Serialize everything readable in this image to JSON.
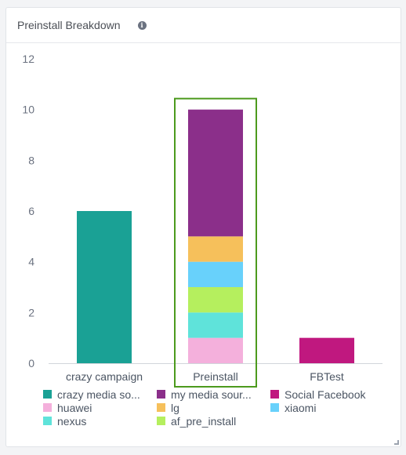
{
  "card": {
    "title": "Preinstall Breakdown",
    "info_icon": "info-icon"
  },
  "chart_data": {
    "type": "bar",
    "stacked": true,
    "categories": [
      "crazy campaign",
      "Preinstall",
      "FBTest"
    ],
    "ylim": [
      0,
      12
    ],
    "yticks": [
      0,
      2,
      4,
      6,
      8,
      10,
      12
    ],
    "highlighted_category": "Preinstall",
    "highlight_color": "#4c9a1d",
    "series": [
      {
        "name": "huawei",
        "color": "#f4b0dc",
        "values": [
          0,
          1,
          0
        ]
      },
      {
        "name": "nexus",
        "color": "#5fe3da",
        "values": [
          0,
          1,
          0
        ]
      },
      {
        "name": "af_pre_install",
        "color": "#b5ef5e",
        "values": [
          0,
          1,
          0
        ]
      },
      {
        "name": "xiaomi",
        "color": "#68d1fb",
        "values": [
          0,
          1,
          0
        ]
      },
      {
        "name": "lg",
        "color": "#f6c05b",
        "values": [
          0,
          1,
          0
        ]
      },
      {
        "name": "my media sour...",
        "color": "#8b2f8a",
        "values": [
          0,
          5,
          0
        ]
      },
      {
        "name": "crazy media so...",
        "color": "#1aa195",
        "values": [
          6,
          0,
          0
        ]
      },
      {
        "name": "Social Facebook",
        "color": "#c0187f",
        "values": [
          0,
          0,
          1
        ]
      }
    ],
    "legend": [
      {
        "label": "crazy media so...",
        "color": "#1aa195"
      },
      {
        "label": "my media sour...",
        "color": "#8b2f8a"
      },
      {
        "label": "Social Facebook",
        "color": "#c0187f"
      },
      {
        "label": "huawei",
        "color": "#f4b0dc"
      },
      {
        "label": "lg",
        "color": "#f6c05b"
      },
      {
        "label": "xiaomi",
        "color": "#68d1fb"
      },
      {
        "label": "nexus",
        "color": "#5fe3da"
      },
      {
        "label": "af_pre_install",
        "color": "#b5ef5e"
      }
    ],
    "legend_position": "bottom",
    "grid": false
  }
}
